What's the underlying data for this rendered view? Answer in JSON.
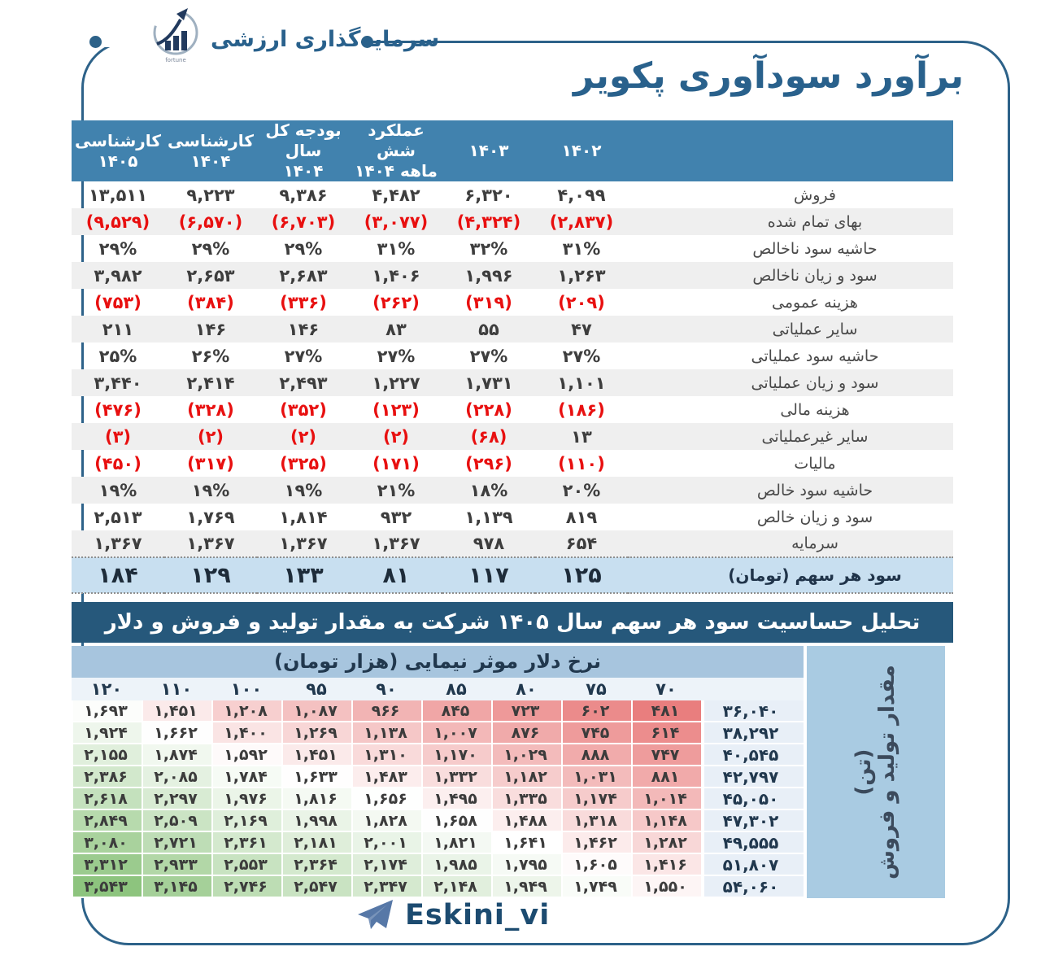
{
  "brand": {
    "name": "سرمایه‌گذاری ارزشی",
    "logo_caption": "fortune"
  },
  "page_title": "برآورد سودآوری پکویر",
  "income_table": {
    "headers": [
      "",
      "۱۴۰۲",
      "۱۴۰۳",
      "عملکرد شش\nماهه ۱۴۰۴",
      "بودجه کل سال\n۱۴۰۴",
      "کارشناسی\n۱۴۰۴",
      "کارشناسی\n۱۴۰۵"
    ],
    "rows": [
      {
        "label": "فروش",
        "values": [
          "۴,۰۹۹",
          "۶,۳۲۰",
          "۴,۴۸۲",
          "۹,۳۸۶",
          "۹,۲۲۳",
          "۱۳,۵۱۱"
        ]
      },
      {
        "label": "بهای تمام شده",
        "values": [
          "(۲,۸۳۷)",
          "(۴,۳۲۴)",
          "(۳,۰۷۷)",
          "(۶,۷۰۳)",
          "(۶,۵۷۰)",
          "(۹,۵۲۹)"
        ]
      },
      {
        "label": "حاشیه سود ناخالص",
        "values": [
          "۳۱%",
          "۳۲%",
          "۳۱%",
          "۲۹%",
          "۲۹%",
          "۲۹%"
        ]
      },
      {
        "label": "سود و زیان ناخالص",
        "values": [
          "۱,۲۶۳",
          "۱,۹۹۶",
          "۱,۴۰۶",
          "۲,۶۸۳",
          "۲,۶۵۳",
          "۳,۹۸۲"
        ]
      },
      {
        "label": "هزینه عمومی",
        "values": [
          "(۲۰۹)",
          "(۳۱۹)",
          "(۲۶۲)",
          "(۳۳۶)",
          "(۳۸۴)",
          "(۷۵۳)"
        ]
      },
      {
        "label": "سایر عملیاتی",
        "values": [
          "۴۷",
          "۵۵",
          "۸۳",
          "۱۴۶",
          "۱۴۶",
          "۲۱۱"
        ]
      },
      {
        "label": "حاشیه سود عملیاتی",
        "values": [
          "۲۷%",
          "۲۷%",
          "۲۷%",
          "۲۷%",
          "۲۶%",
          "۲۵%"
        ]
      },
      {
        "label": "سود و زیان عملیاتی",
        "values": [
          "۱,۱۰۱",
          "۱,۷۳۱",
          "۱,۲۲۷",
          "۲,۴۹۳",
          "۲,۴۱۴",
          "۳,۴۴۰"
        ]
      },
      {
        "label": "هزینه مالی",
        "values": [
          "(۱۸۶)",
          "(۲۲۸)",
          "(۱۲۳)",
          "(۳۵۲)",
          "(۳۲۸)",
          "(۴۷۶)"
        ]
      },
      {
        "label": "سایر غیرعملیاتی",
        "values": [
          "۱۳",
          "(۶۸)",
          "(۲)",
          "(۲)",
          "(۲)",
          "(۳)"
        ]
      },
      {
        "label": "مالیات",
        "values": [
          "(۱۱۰)",
          "(۲۹۶)",
          "(۱۷۱)",
          "(۳۲۵)",
          "(۳۱۷)",
          "(۴۵۰)"
        ]
      },
      {
        "label": "حاشیه سود خالص",
        "values": [
          "۲۰%",
          "۱۸%",
          "۲۱%",
          "۱۹%",
          "۱۹%",
          "۱۹%"
        ]
      },
      {
        "label": "سود و زیان خالص",
        "values": [
          "۸۱۹",
          "۱,۱۳۹",
          "۹۳۲",
          "۱,۸۱۴",
          "۱,۷۶۹",
          "۲,۵۱۳"
        ]
      },
      {
        "label": "سرمایه",
        "values": [
          "۶۵۴",
          "۹۷۸",
          "۱,۳۶۷",
          "۱,۳۶۷",
          "۱,۳۶۷",
          "۱,۳۶۷"
        ]
      }
    ],
    "eps_row": {
      "label": "سود هر سهم (تومان)",
      "values": [
        "۱۲۵",
        "۱۱۷",
        "۸۱",
        "۱۳۳",
        "۱۲۹",
        "۱۸۴"
      ]
    }
  },
  "sensitivity": {
    "title": "تحلیل حساسیت سود هر سهم سال ۱۴۰۵  شرکت به مقدار تولید و فروش و دلار",
    "axis_title": "نرخ دلار موثر نیمایی (هزار تومان)",
    "row_axis_label_line1": "مقدار تولید و فروش",
    "row_axis_label_line2": "(تن)",
    "dollar_rates_rtl": [
      "۷۰",
      "۷۵",
      "۸۰",
      "۸۵",
      "۹۰",
      "۹۵",
      "۱۰۰",
      "۱۱۰",
      "۱۲۰"
    ],
    "rows": [
      {
        "production": "۳۶,۰۴۰",
        "values": [
          "۴۸۱",
          "۶۰۲",
          "۷۲۳",
          "۸۴۵",
          "۹۶۶",
          "۱,۰۸۷",
          "۱,۲۰۸",
          "۱,۴۵۱",
          "۱,۶۹۳"
        ]
      },
      {
        "production": "۳۸,۲۹۲",
        "values": [
          "۶۱۴",
          "۷۴۵",
          "۸۷۶",
          "۱,۰۰۷",
          "۱,۱۳۸",
          "۱,۲۶۹",
          "۱,۴۰۰",
          "۱,۶۶۲",
          "۱,۹۲۴"
        ]
      },
      {
        "production": "۴۰,۵۴۵",
        "values": [
          "۷۴۷",
          "۸۸۸",
          "۱,۰۲۹",
          "۱,۱۷۰",
          "۱,۳۱۰",
          "۱,۴۵۱",
          "۱,۵۹۲",
          "۱,۸۷۴",
          "۲,۱۵۵"
        ]
      },
      {
        "production": "۴۲,۷۹۷",
        "values": [
          "۸۸۱",
          "۱,۰۳۱",
          "۱,۱۸۲",
          "۱,۳۳۲",
          "۱,۴۸۳",
          "۱,۶۳۳",
          "۱,۷۸۴",
          "۲,۰۸۵",
          "۲,۳۸۶"
        ]
      },
      {
        "production": "۴۵,۰۵۰",
        "values": [
          "۱,۰۱۴",
          "۱,۱۷۴",
          "۱,۳۳۵",
          "۱,۴۹۵",
          "۱,۶۵۶",
          "۱,۸۱۶",
          "۱,۹۷۶",
          "۲,۲۹۷",
          "۲,۶۱۸"
        ]
      },
      {
        "production": "۴۷,۳۰۲",
        "values": [
          "۱,۱۴۸",
          "۱,۳۱۸",
          "۱,۴۸۸",
          "۱,۶۵۸",
          "۱,۸۲۸",
          "۱,۹۹۸",
          "۲,۱۶۹",
          "۲,۵۰۹",
          "۲,۸۴۹"
        ]
      },
      {
        "production": "۴۹,۵۵۵",
        "values": [
          "۱,۲۸۲",
          "۱,۴۶۲",
          "۱,۶۴۱",
          "۱,۸۲۱",
          "۲,۰۰۱",
          "۲,۱۸۱",
          "۲,۳۶۱",
          "۲,۷۲۱",
          "۳,۰۸۰"
        ]
      },
      {
        "production": "۵۱,۸۰۷",
        "values": [
          "۱,۴۱۶",
          "۱,۶۰۵",
          "۱,۷۹۵",
          "۱,۹۸۵",
          "۲,۱۷۴",
          "۲,۳۶۴",
          "۲,۵۵۳",
          "۲,۹۳۳",
          "۳,۳۱۲"
        ]
      },
      {
        "production": "۵۴,۰۶۰",
        "values": [
          "۱,۵۵۰",
          "۱,۷۴۹",
          "۱,۹۴۹",
          "۲,۱۴۸",
          "۲,۳۴۷",
          "۲,۵۴۷",
          "۲,۷۴۶",
          "۳,۱۴۵",
          "۳,۵۴۳"
        ]
      }
    ]
  },
  "footer": {
    "handle": "Eskini_vi"
  },
  "colors": {
    "frame": "#2d6289",
    "header_bg": "#4182ae",
    "alt_row": "#efefef",
    "negative_text": "#e81010",
    "eps_row_bg": "#c8dff0",
    "sens_title_bg": "#26587b",
    "axis_bar_bg": "#a7c5de",
    "ybox_bg": "#a9cbe2",
    "col_header_bg": "#edf3f9",
    "production_col_bg": "#e8eff7",
    "scale_red": "#e97e7e",
    "scale_white": "#ffffff",
    "scale_green": "#8dc47e",
    "title_text": "#29618c"
  }
}
